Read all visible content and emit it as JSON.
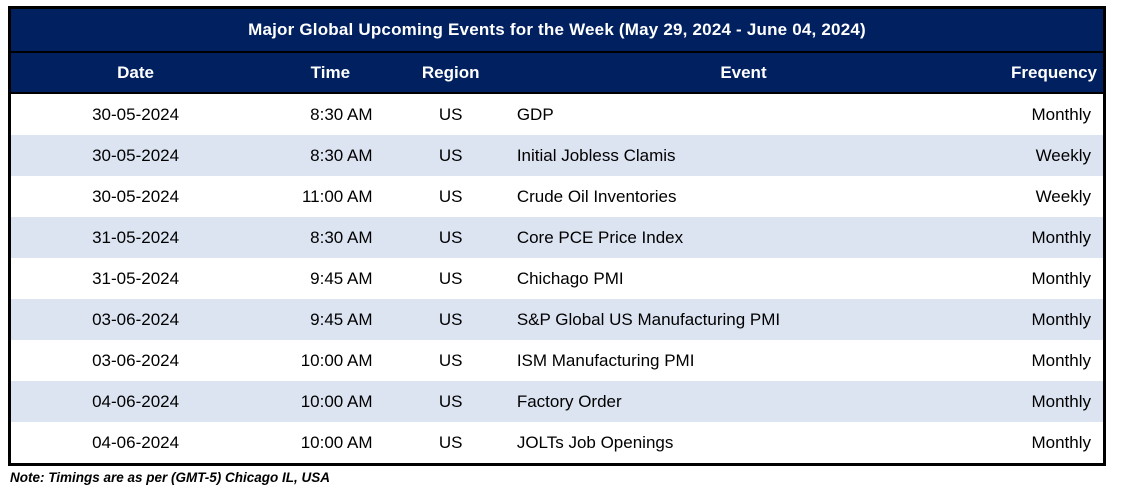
{
  "title": "Major Global Upcoming Events for the Week (May 29, 2024 - June 04, 2024)",
  "table": {
    "columns": [
      "Date",
      "Time",
      "Region",
      "Event",
      "Frequency"
    ],
    "rows": [
      {
        "date": "30-05-2024",
        "time": "8:30 AM",
        "region": "US",
        "event": "GDP",
        "frequency": "Monthly"
      },
      {
        "date": "30-05-2024",
        "time": "8:30 AM",
        "region": "US",
        "event": "Initial Jobless Clamis",
        "frequency": "Weekly"
      },
      {
        "date": "30-05-2024",
        "time": "11:00 AM",
        "region": "US",
        "event": "Crude Oil Inventories",
        "frequency": "Weekly"
      },
      {
        "date": "31-05-2024",
        "time": "8:30 AM",
        "region": "US",
        "event": "Core PCE Price Index",
        "frequency": "Monthly"
      },
      {
        "date": "31-05-2024",
        "time": "9:45 AM",
        "region": "US",
        "event": "Chichago PMI",
        "frequency": "Monthly"
      },
      {
        "date": "03-06-2024",
        "time": "9:45 AM",
        "region": "US",
        "event": "S&P Global US Manufacturing PMI",
        "frequency": "Monthly"
      },
      {
        "date": "03-06-2024",
        "time": "10:00 AM",
        "region": "US",
        "event": "ISM Manufacturing PMI",
        "frequency": "Monthly"
      },
      {
        "date": "04-06-2024",
        "time": "10:00 AM",
        "region": "US",
        "event": "Factory Order",
        "frequency": "Monthly"
      },
      {
        "date": "04-06-2024",
        "time": "10:00 AM",
        "region": "US",
        "event": "JOLTs Job Openings",
        "frequency": "Monthly"
      }
    ]
  },
  "note": "Note: Timings are as per (GMT-5) Chicago IL, USA",
  "colors": {
    "header_bg": "#002060",
    "stripe_bg": "#dce4f2",
    "border": "#000000",
    "header_text": "#ffffff",
    "body_text": "#000000"
  }
}
